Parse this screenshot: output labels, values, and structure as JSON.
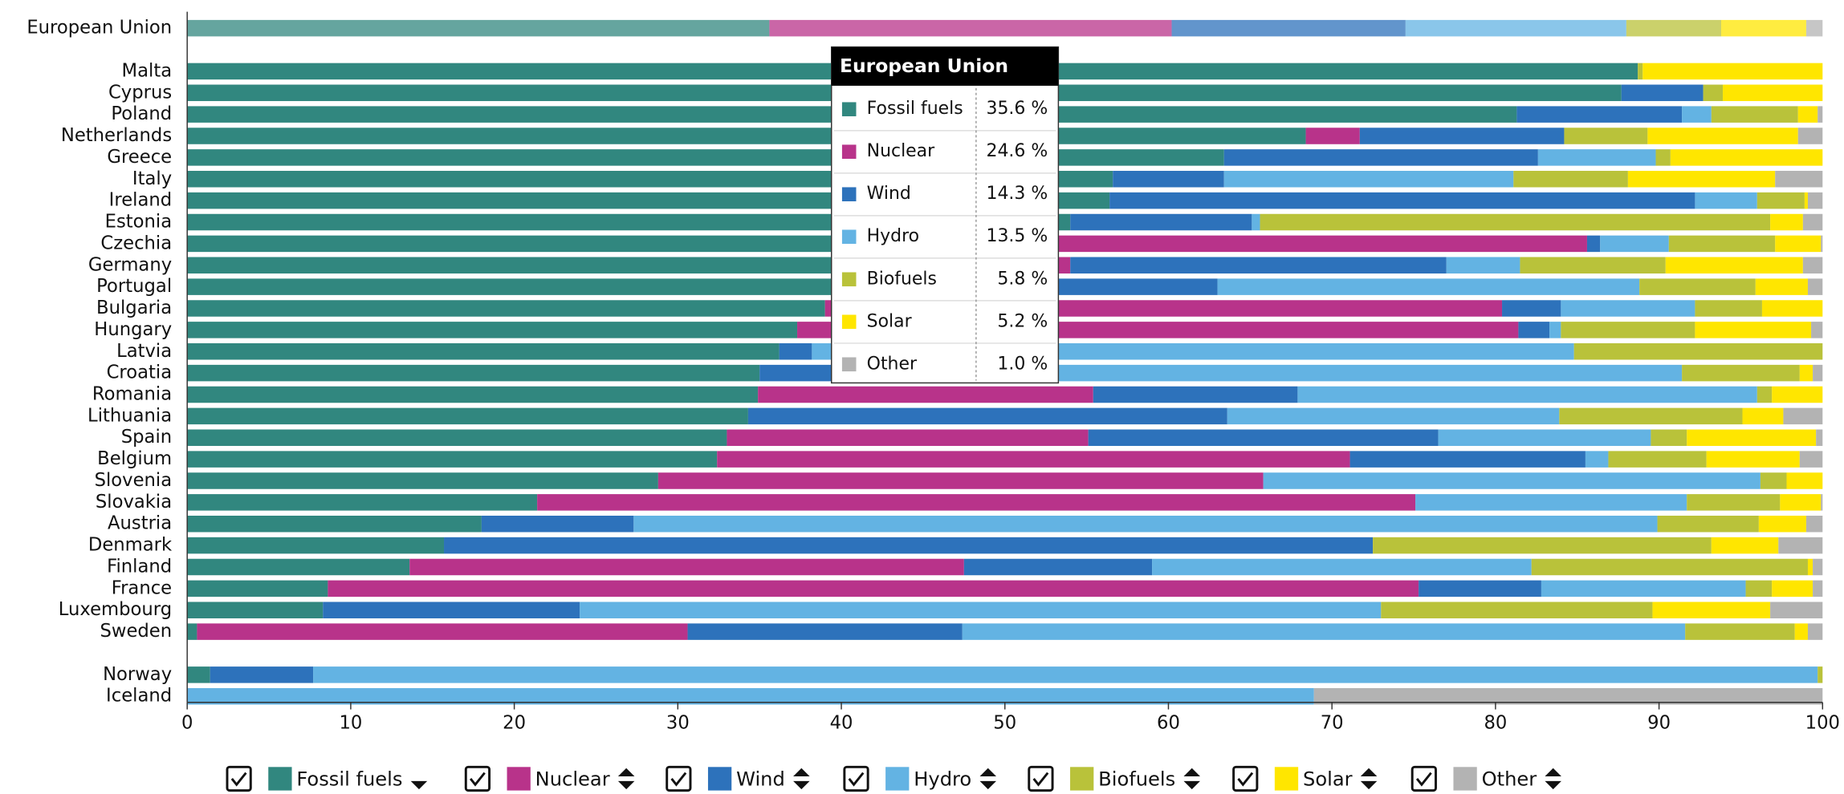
{
  "chart_data": {
    "type": "stacked_barh",
    "categories": [
      "European Union",
      "Malta",
      "Cyprus",
      "Poland",
      "Netherlands",
      "Greece",
      "Italy",
      "Ireland",
      "Estonia",
      "Czechia",
      "Germany",
      "Portugal",
      "Bulgaria",
      "Hungary",
      "Latvia",
      "Croatia",
      "Romania",
      "Lithuania",
      "Spain",
      "Belgium",
      "Slovenia",
      "Slovakia",
      "Austria",
      "Denmark",
      "Finland",
      "France",
      "Luxembourg",
      "Sweden",
      "Norway",
      "Iceland"
    ],
    "series": [
      {
        "name": "Fossil fuels",
        "color": "#31877f",
        "values": [
          35.6,
          88.7,
          87.7,
          81.3,
          68.4,
          63.4,
          56.6,
          56.4,
          54.0,
          50.0,
          45.0,
          41.0,
          39.0,
          37.3,
          36.2,
          35.0,
          34.9,
          34.3,
          33.0,
          32.4,
          28.8,
          21.4,
          18.0,
          15.7,
          13.6,
          8.6,
          8.3,
          0.6,
          1.4,
          0
        ]
      },
      {
        "name": "Nuclear",
        "color": "#b8338a",
        "values": [
          24.6,
          0,
          0,
          0,
          3.3,
          0,
          0,
          0,
          0,
          35.6,
          9.0,
          0,
          41.4,
          44.1,
          0,
          0,
          20.5,
          0,
          22.1,
          38.7,
          37.0,
          53.7,
          0,
          0,
          33.9,
          66.7,
          0,
          30.0,
          0,
          0
        ]
      },
      {
        "name": "Wind",
        "color": "#2d72bb",
        "values": [
          14.3,
          0,
          5.0,
          10.1,
          12.5,
          19.2,
          6.8,
          35.8,
          11.1,
          0.8,
          23.0,
          22.0,
          3.6,
          1.9,
          2.0,
          10.0,
          12.5,
          29.3,
          21.4,
          14.4,
          0,
          0,
          9.3,
          56.8,
          11.5,
          7.5,
          15.7,
          16.8,
          6.3,
          0
        ]
      },
      {
        "name": "Hydro",
        "color": "#63b3e3",
        "values": [
          13.5,
          0,
          0,
          1.8,
          0,
          7.2,
          17.7,
          3.8,
          0.5,
          4.2,
          4.5,
          25.8,
          8.2,
          0.7,
          46.6,
          46.4,
          28.1,
          20.3,
          13.0,
          1.4,
          30.4,
          16.6,
          62.6,
          0,
          23.2,
          12.5,
          49.0,
          44.2,
          92.0,
          68.9
        ]
      },
      {
        "name": "Biofuels",
        "color": "#b9c23a",
        "values": [
          5.8,
          0.3,
          1.2,
          5.3,
          5.1,
          0.9,
          7.0,
          2.9,
          31.2,
          6.5,
          8.9,
          7.1,
          4.1,
          8.2,
          15.2,
          7.2,
          0.9,
          11.2,
          2.2,
          6.0,
          1.6,
          5.7,
          6.2,
          20.7,
          16.9,
          1.6,
          16.6,
          6.7,
          0.3,
          0
        ]
      },
      {
        "name": "Solar",
        "color": "#ffe600",
        "values": [
          5.2,
          11.0,
          6.1,
          1.2,
          9.2,
          9.3,
          9.0,
          0.2,
          2.0,
          2.8,
          8.4,
          3.2,
          3.7,
          7.1,
          0,
          0.8,
          3.1,
          2.5,
          7.9,
          5.7,
          2.2,
          2.5,
          2.9,
          4.1,
          0.3,
          2.5,
          7.2,
          0.8,
          0,
          0
        ]
      },
      {
        "name": "Other",
        "color": "#b3b3b3",
        "values": [
          1.0,
          0,
          0,
          0.3,
          1.5,
          0,
          2.9,
          0.9,
          1.2,
          0.1,
          1.2,
          0.9,
          0,
          0.7,
          0,
          0.6,
          0,
          2.4,
          0.4,
          1.4,
          0,
          0.1,
          1.0,
          2.7,
          0.6,
          0.6,
          3.2,
          0.9,
          0,
          31.1
        ]
      }
    ],
    "xlim": [
      0,
      100
    ],
    "xticks": [
      0,
      10,
      20,
      30,
      40,
      50,
      60,
      70,
      80,
      90,
      100
    ],
    "tooltip": {
      "value_labels": [
        "35.6 %",
        "24.6 %",
        "14.3 %",
        "13.5 %",
        "5.8 %",
        "5.2 %",
        "1.0 %"
      ]
    }
  }
}
